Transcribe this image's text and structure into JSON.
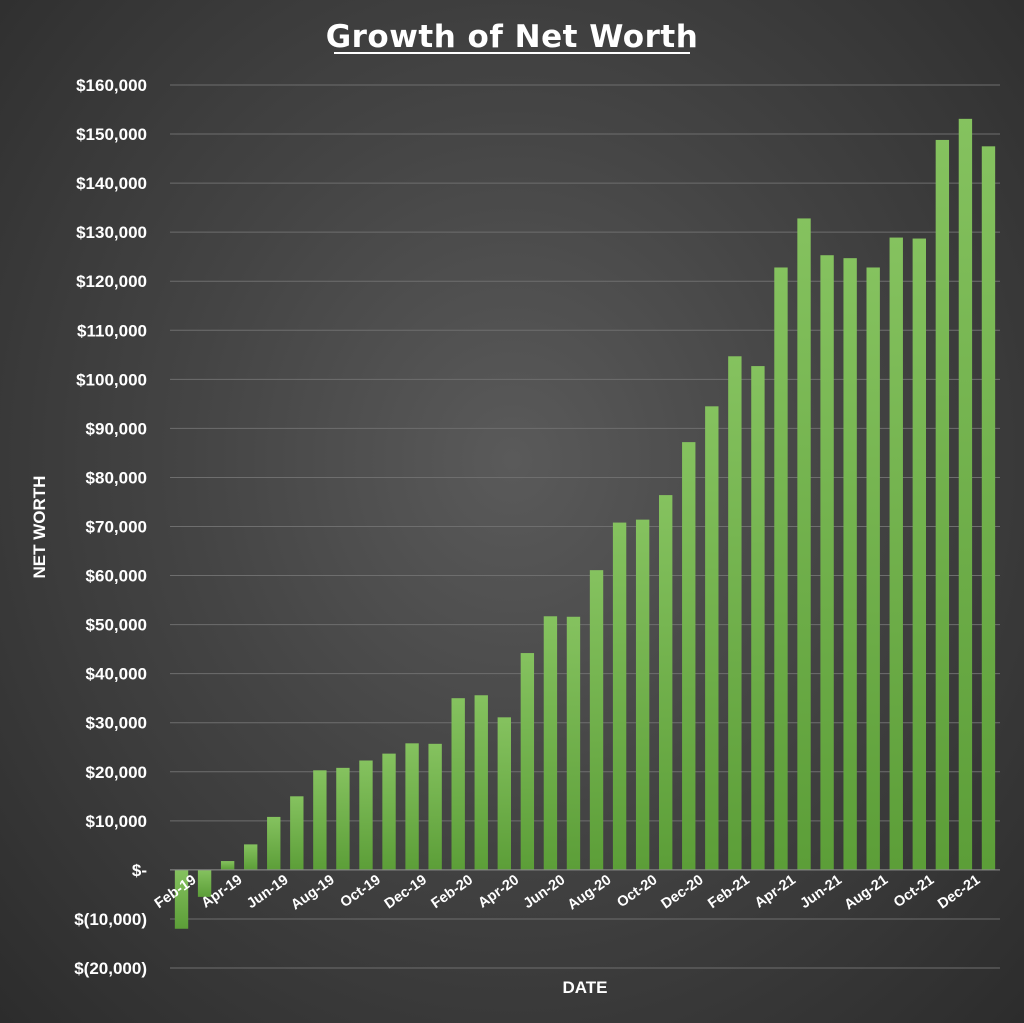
{
  "chart_data": {
    "type": "bar",
    "title": "Growth of Net Worth",
    "xlabel": "DATE",
    "ylabel": "NET WORTH",
    "ylim": [
      -20000,
      160000
    ],
    "yticks": [
      -20000,
      -10000,
      0,
      10000,
      20000,
      30000,
      40000,
      50000,
      60000,
      70000,
      80000,
      90000,
      100000,
      110000,
      120000,
      130000,
      140000,
      150000,
      160000
    ],
    "ytick_labels": [
      "$(20,000)",
      "$(10,000)",
      "$-",
      "$10,000",
      "$20,000",
      "$30,000",
      "$40,000",
      "$50,000",
      "$60,000",
      "$70,000",
      "$80,000",
      "$90,000",
      "$100,000",
      "$110,000",
      "$120,000",
      "$130,000",
      "$140,000",
      "$150,000",
      "$160,000"
    ],
    "grid": true,
    "bar_color": "#6fb04a",
    "categories": [
      "Feb-19",
      "Mar-19",
      "Apr-19",
      "May-19",
      "Jun-19",
      "Jul-19",
      "Aug-19",
      "Sep-19",
      "Oct-19",
      "Nov-19",
      "Dec-19",
      "Jan-20",
      "Feb-20",
      "Mar-20",
      "Apr-20",
      "May-20",
      "Jun-20",
      "Jul-20",
      "Aug-20",
      "Sep-20",
      "Oct-20",
      "Nov-20",
      "Dec-20",
      "Jan-21",
      "Feb-21",
      "Mar-21",
      "Apr-21",
      "May-21",
      "Jun-21",
      "Jul-21",
      "Aug-21",
      "Sep-21",
      "Oct-21",
      "Nov-21",
      "Dec-21",
      "Jan-22"
    ],
    "xtick_labels": [
      "Feb-19",
      "Apr-19",
      "Jun-19",
      "Aug-19",
      "Oct-19",
      "Dec-19",
      "Feb-20",
      "Apr-20",
      "Jun-20",
      "Aug-20",
      "Oct-20",
      "Dec-20",
      "Feb-21",
      "Apr-21",
      "Jun-21",
      "Aug-21",
      "Oct-21",
      "Dec-21"
    ],
    "values": [
      -12000,
      -5500,
      1800,
      5200,
      10800,
      15000,
      20300,
      20800,
      22300,
      23700,
      25800,
      25700,
      35000,
      35600,
      31100,
      44200,
      51700,
      51600,
      61100,
      70800,
      71400,
      76400,
      87200,
      94500,
      104700,
      102700,
      122800,
      132800,
      125300,
      124700,
      122800,
      128900,
      128700,
      148800,
      153100,
      147500
    ]
  }
}
